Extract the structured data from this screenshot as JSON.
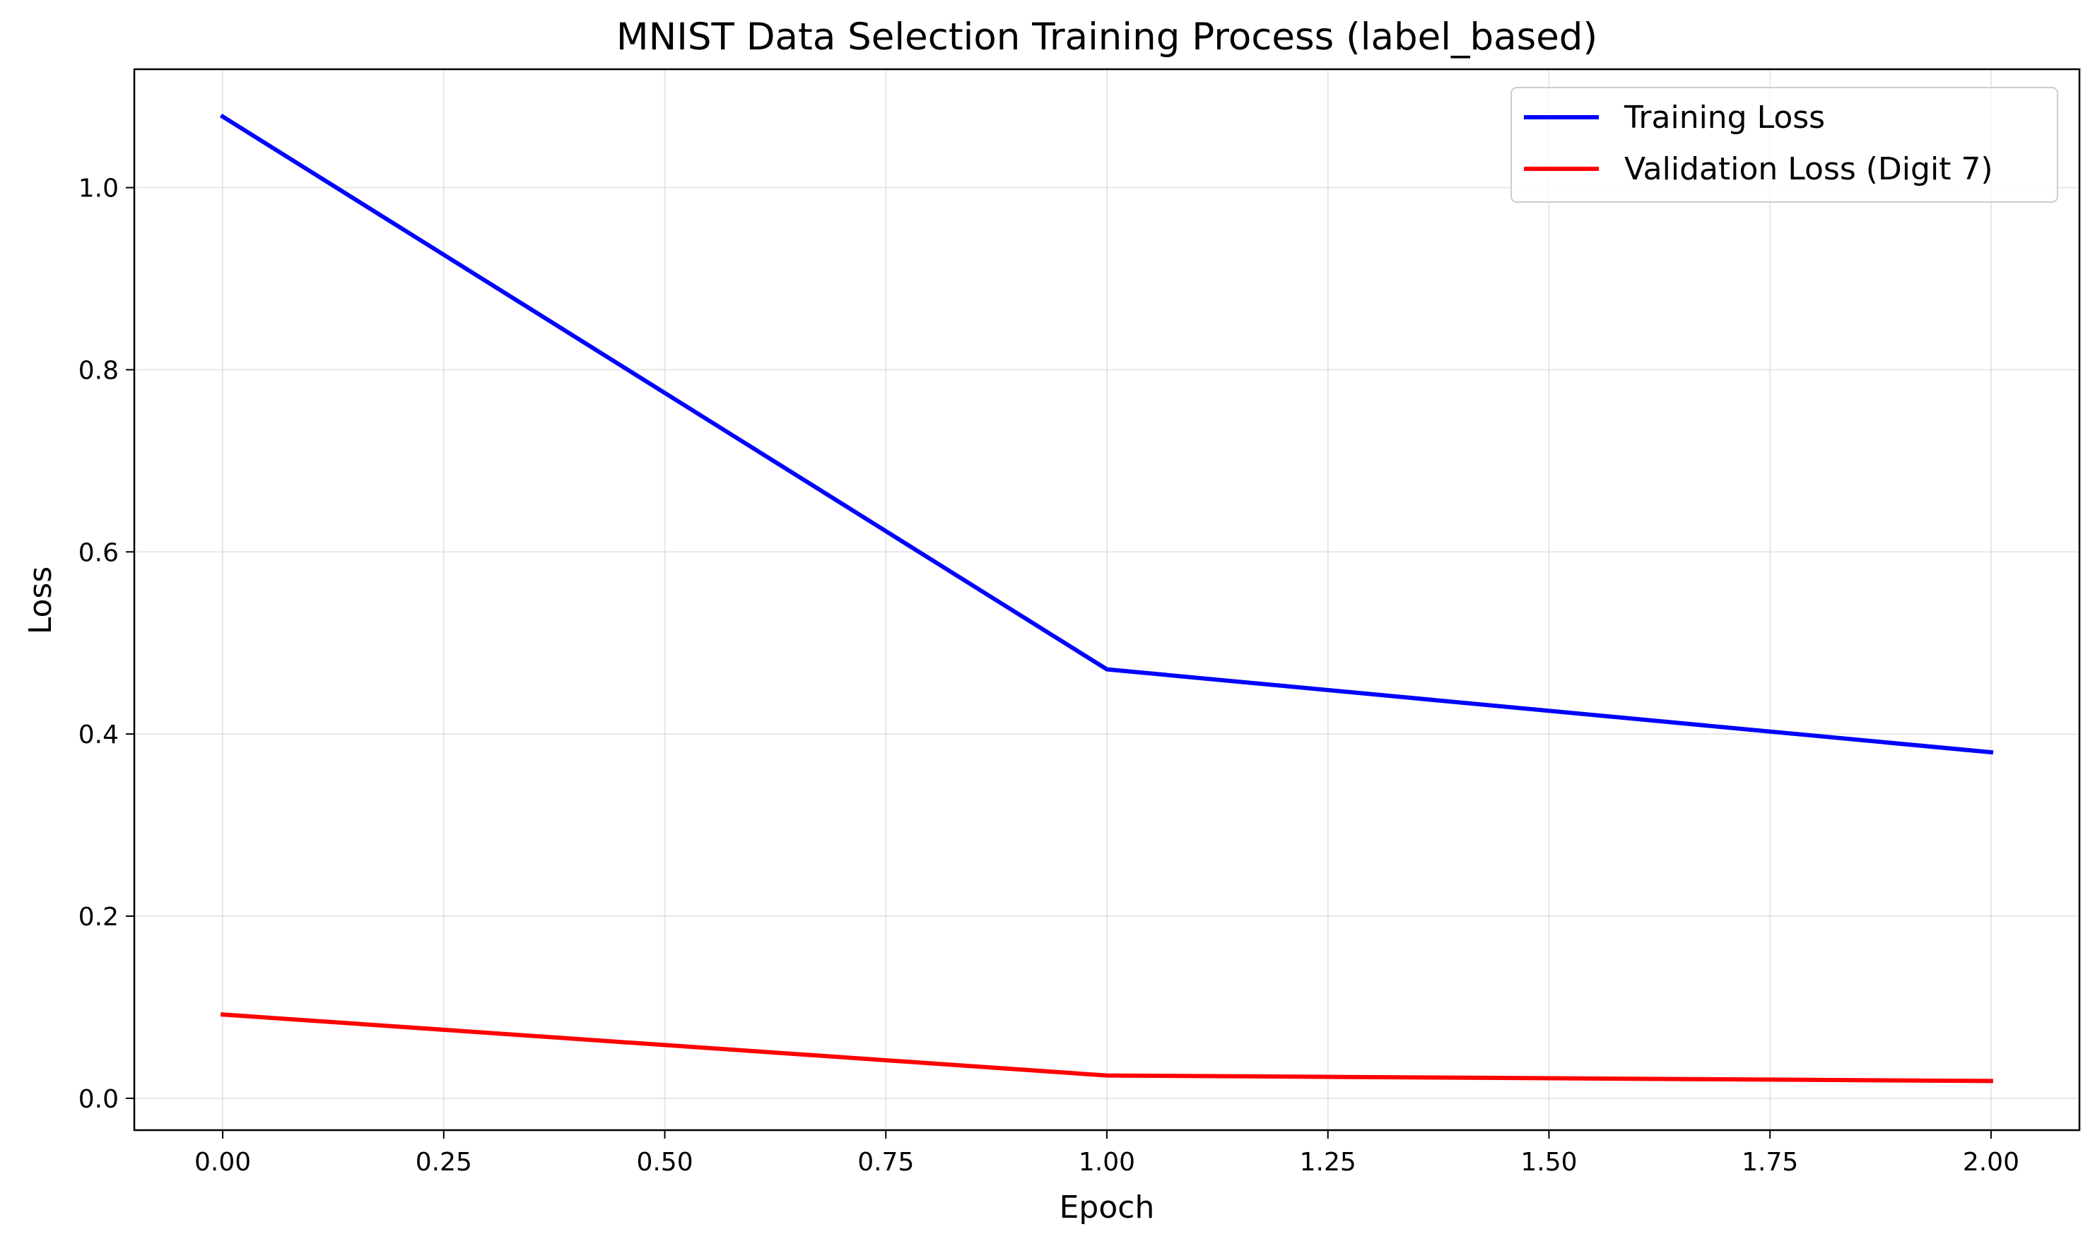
{
  "chart_data": {
    "type": "line",
    "title": "MNIST Data Selection Training Process (label_based)",
    "xlabel": "Epoch",
    "ylabel": "Loss",
    "xlim": [
      -0.1,
      2.1
    ],
    "ylim": [
      -0.035,
      1.13
    ],
    "xticks": [
      0.0,
      0.25,
      0.5,
      0.75,
      1.0,
      1.25,
      1.5,
      1.75,
      2.0
    ],
    "xtick_labels": [
      "0.00",
      "0.25",
      "0.50",
      "0.75",
      "1.00",
      "1.25",
      "1.50",
      "1.75",
      "2.00"
    ],
    "yticks": [
      0.0,
      0.2,
      0.4,
      0.6,
      0.8,
      1.0
    ],
    "ytick_labels": [
      "0.0",
      "0.2",
      "0.4",
      "0.6",
      "0.8",
      "1.0"
    ],
    "grid": true,
    "legend_position": "top-right",
    "series": [
      {
        "name": "Training Loss",
        "color": "#0000ff",
        "x": [
          0,
          1,
          2
        ],
        "y": [
          1.078,
          0.471,
          0.38
        ]
      },
      {
        "name": "Validation Loss (Digit 7)",
        "color": "#ff0000",
        "x": [
          0,
          1,
          2
        ],
        "y": [
          0.092,
          0.025,
          0.019
        ]
      }
    ]
  }
}
